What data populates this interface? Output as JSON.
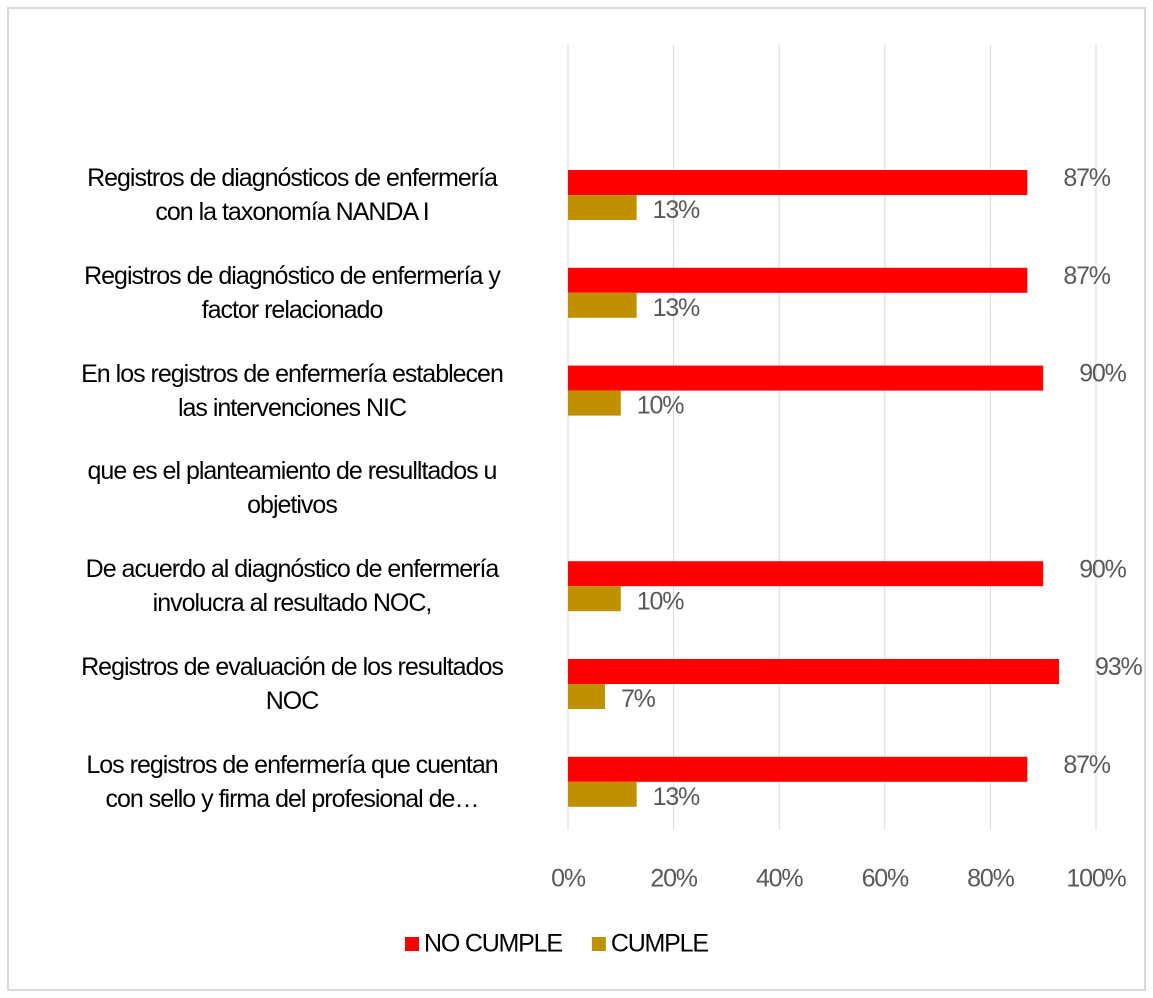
{
  "chart_data": {
    "type": "bar",
    "orientation": "horizontal",
    "categories": [
      "Registros de diagnósticos de enfermería\ncon la taxonomía NANDA I",
      "Registros de diagnóstico de enfermería y\nfactor relacionado",
      "En los registros de enfermería establecen\nlas intervenciones NIC",
      "que es el planteamiento de resulltados u\nobjetivos",
      "De acuerdo al diagnóstico de enfermería\ninvolucra al resultado NOC,",
      "Registros de evaluación de los resultados\nNOC",
      "Los registros de enfermería que cuentan\ncon sello y firma del profesional de…"
    ],
    "series": [
      {
        "name": "NO CUMPLE",
        "color": "#ff0000",
        "values": [
          87,
          87,
          90,
          null,
          90,
          93,
          87
        ],
        "value_labels": [
          "87%",
          "87%",
          "90%",
          null,
          "90%",
          "93%",
          "87%"
        ]
      },
      {
        "name": "CUMPLE",
        "color": "#bf9000",
        "values": [
          13,
          13,
          10,
          null,
          10,
          7,
          13
        ],
        "value_labels": [
          "13%",
          "13%",
          "10%",
          null,
          "10%",
          "7%",
          "13%"
        ]
      }
    ],
    "xlim": [
      0,
      100
    ],
    "xticks": [
      {
        "value": 0,
        "label": "0%"
      },
      {
        "value": 20,
        "label": "20%"
      },
      {
        "value": 40,
        "label": "40%"
      },
      {
        "value": 60,
        "label": "60%"
      },
      {
        "value": 80,
        "label": "80%"
      },
      {
        "value": 100,
        "label": "100%"
      }
    ],
    "grid": true,
    "legend": "bottom"
  }
}
